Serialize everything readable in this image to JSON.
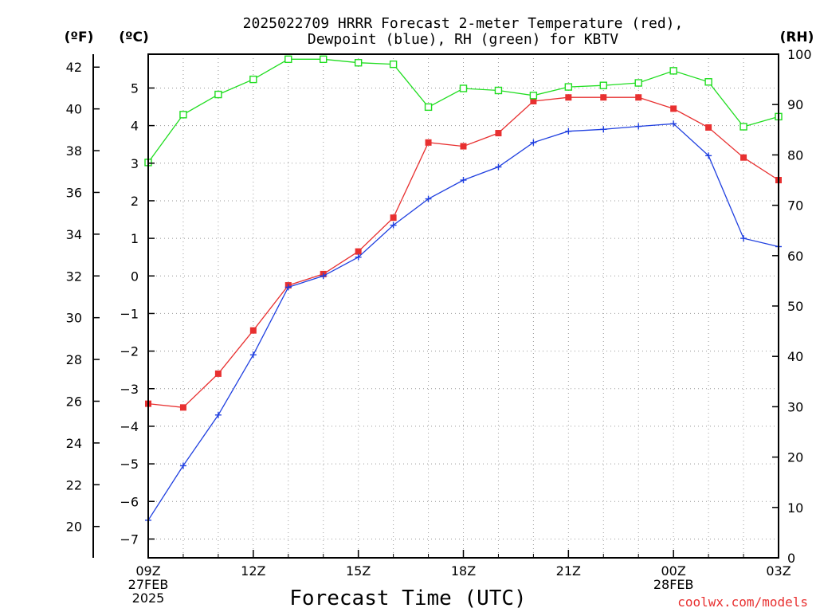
{
  "chart_data": {
    "type": "line",
    "title_line1": "2025022709 HRRR Forecast 2-meter Temperature (red),",
    "title_line2": "Dewpoint (blue), RH (green) for KBTV",
    "xlabel": "Forecast Time (UTC)",
    "watermark": "coolwx.com/models",
    "units": {
      "f": "(ºF)",
      "c": "(ºC)",
      "rh": "(RH)"
    },
    "x_hours": [
      0,
      1,
      2,
      3,
      4,
      5,
      6,
      7,
      8,
      9,
      10,
      11,
      12,
      13,
      14,
      15,
      16,
      17,
      18
    ],
    "x_ticks": [
      {
        "hour": 0,
        "lines": [
          "09Z",
          "27FEB",
          "2025"
        ]
      },
      {
        "hour": 3,
        "lines": [
          "12Z"
        ]
      },
      {
        "hour": 6,
        "lines": [
          "15Z"
        ]
      },
      {
        "hour": 9,
        "lines": [
          "18Z"
        ]
      },
      {
        "hour": 12,
        "lines": [
          "21Z"
        ]
      },
      {
        "hour": 15,
        "lines": [
          "00Z",
          "28FEB"
        ]
      },
      {
        "hour": 18,
        "lines": [
          "03Z"
        ]
      }
    ],
    "y_c": {
      "range": [
        -7.5,
        5.9
      ],
      "ticks": [
        -7,
        -6,
        -5,
        -4,
        -3,
        -2,
        -1,
        0,
        1,
        2,
        3,
        4,
        5
      ]
    },
    "y_f": {
      "ticks": [
        20,
        22,
        24,
        26,
        28,
        30,
        32,
        34,
        36,
        38,
        40,
        42
      ]
    },
    "y_rh": {
      "range": [
        0,
        100
      ],
      "ticks": [
        0,
        10,
        20,
        30,
        40,
        50,
        60,
        70,
        80,
        90,
        100
      ]
    },
    "grid": true,
    "series": [
      {
        "key": "temperature",
        "color": "#e83030",
        "axis": "c",
        "marker": "filled-square",
        "values": [
          -3.4,
          -3.5,
          -2.6,
          -1.45,
          -0.25,
          0.05,
          0.65,
          1.55,
          3.55,
          3.45,
          3.8,
          4.65,
          4.75,
          4.75,
          4.75,
          4.45,
          3.95,
          3.15,
          2.55
        ]
      },
      {
        "key": "dewpoint",
        "color": "#2040e0",
        "axis": "c",
        "marker": "plus",
        "values": [
          -6.5,
          -5.05,
          -3.7,
          -2.1,
          -0.3,
          0.0,
          0.5,
          1.35,
          2.05,
          2.55,
          2.9,
          3.55,
          3.85,
          3.9,
          3.98,
          4.05,
          3.2,
          1.0,
          0.78
        ]
      },
      {
        "key": "rh",
        "color": "#20dd20",
        "axis": "rh",
        "marker": "open-square",
        "values": [
          78.5,
          88,
          92,
          95,
          99,
          99,
          98.3,
          98,
          89.5,
          93.2,
          92.8,
          91.8,
          93.5,
          93.8,
          94.3,
          96.7,
          94.5,
          85.6,
          87.6
        ]
      }
    ]
  }
}
